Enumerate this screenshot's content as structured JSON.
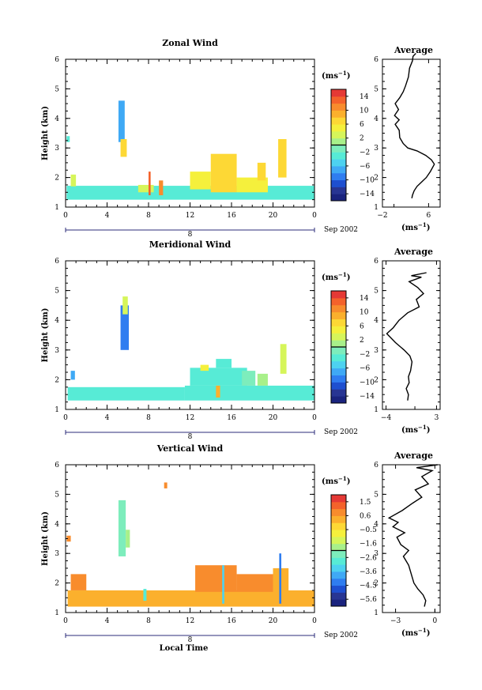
{
  "chart_data": [
    {
      "type": "heatmap",
      "title": "Zonal Wind",
      "ylabel": "Height (km)",
      "xlabel": "",
      "x_ticks": [
        "0",
        "4",
        "8",
        "12",
        "16",
        "20",
        "0"
      ],
      "y_ticks": [
        "1",
        "2",
        "3",
        "4",
        "5",
        "6"
      ],
      "xlim": [
        0,
        24
      ],
      "ylim": [
        1,
        6
      ],
      "date_label": "8",
      "month_label": "Sep 2002",
      "colorbar": {
        "unit": "(ms",
        "unit_exp": "−1",
        "unit_close": ")",
        "tick_labels": [
          "14",
          "10",
          "6",
          "2",
          "−2",
          "−6",
          "−10",
          "−14"
        ],
        "range": [
          -16,
          16
        ],
        "colors": [
          "#1a237e",
          "#283593",
          "#1e4fd0",
          "#2f7df0",
          "#3fa9f5",
          "#4dd2f0",
          "#57ebd6",
          "#7dedbc",
          "#a8f08a",
          "#d6f55a",
          "#f5f03c",
          "#fdd835",
          "#fbb02d",
          "#f88c2d",
          "#f4622b",
          "#e53935"
        ]
      },
      "blocks": [
        {
          "x0": 0.1,
          "x1": 24,
          "y0": 1.25,
          "y1": 1.72,
          "v": -4
        },
        {
          "x0": 0.5,
          "x1": 1.0,
          "y0": 1.7,
          "y1": 2.1,
          "v": 3
        },
        {
          "x0": 5.1,
          "x1": 5.7,
          "y0": 3.2,
          "y1": 4.6,
          "v": -7
        },
        {
          "x0": 5.3,
          "x1": 5.9,
          "y0": 2.7,
          "y1": 3.3,
          "v": 6
        },
        {
          "x0": 7.0,
          "x1": 8.5,
          "y0": 1.5,
          "y1": 1.75,
          "v": 2
        },
        {
          "x0": 12.0,
          "x1": 14.0,
          "y0": 1.6,
          "y1": 2.2,
          "v": 5
        },
        {
          "x0": 14.0,
          "x1": 16.5,
          "y0": 1.5,
          "y1": 2.8,
          "v": 7
        },
        {
          "x0": 16.5,
          "x1": 19.5,
          "y0": 1.5,
          "y1": 2.0,
          "v": 4
        },
        {
          "x0": 18.5,
          "x1": 19.3,
          "y0": 1.9,
          "y1": 2.5,
          "v": 6
        },
        {
          "x0": 20.5,
          "x1": 21.3,
          "y0": 2.0,
          "y1": 3.3,
          "v": 7
        },
        {
          "x0": 9.0,
          "x1": 9.4,
          "y0": 1.4,
          "y1": 1.9,
          "v": 11
        },
        {
          "x0": 8.0,
          "x1": 8.2,
          "y0": 1.4,
          "y1": 2.2,
          "v": 12
        },
        {
          "x0": 0.1,
          "x1": 0.4,
          "y0": 3.2,
          "y1": 3.4,
          "v": -4
        }
      ],
      "profile": {
        "title": "Average",
        "xlim": [
          -2,
          8
        ],
        "x_ticks": [
          "−2",
          "6"
        ],
        "x_tick_values": [
          -2,
          6
        ],
        "y_ticks": [
          "1",
          "2",
          "3",
          "4",
          "5",
          "6"
        ],
        "unit": "(ms",
        "unit_exp": "−1",
        "unit_close": ")",
        "points": [
          [
            3.1,
            1.3
          ],
          [
            3.2,
            1.4
          ],
          [
            3.5,
            1.55
          ],
          [
            4.0,
            1.7
          ],
          [
            4.8,
            1.85
          ],
          [
            5.6,
            2.0
          ],
          [
            6.3,
            2.2
          ],
          [
            7.0,
            2.45
          ],
          [
            6.5,
            2.6
          ],
          [
            5.5,
            2.75
          ],
          [
            4.0,
            2.9
          ],
          [
            2.4,
            3.0
          ],
          [
            1.6,
            3.15
          ],
          [
            1.0,
            3.35
          ],
          [
            0.9,
            3.6
          ],
          [
            0.2,
            3.8
          ],
          [
            0.9,
            3.95
          ],
          [
            0.1,
            4.1
          ],
          [
            0.8,
            4.3
          ],
          [
            0.2,
            4.5
          ],
          [
            1.0,
            4.7
          ],
          [
            1.6,
            4.9
          ],
          [
            2.0,
            5.1
          ],
          [
            2.5,
            5.4
          ],
          [
            2.7,
            5.7
          ],
          [
            3.2,
            5.95
          ],
          [
            3.3,
            6.1
          ],
          [
            3.8,
            6.2
          ]
        ]
      }
    },
    {
      "type": "heatmap",
      "title": "Meridional Wind",
      "ylabel": "Height (km)",
      "xlabel": "",
      "x_ticks": [
        "0",
        "4",
        "8",
        "12",
        "16",
        "20",
        "0"
      ],
      "y_ticks": [
        "1",
        "2",
        "3",
        "4",
        "5",
        "6"
      ],
      "xlim": [
        0,
        24
      ],
      "ylim": [
        1,
        6
      ],
      "date_label": "8",
      "month_label": "Sep 2002",
      "colorbar": {
        "unit": "(ms",
        "unit_exp": "−1",
        "unit_close": ")",
        "tick_labels": [
          "14",
          "10",
          "6",
          "2",
          "−2",
          "−6",
          "−10",
          "−14"
        ],
        "range": [
          -16,
          16
        ],
        "colors": [
          "#1a237e",
          "#283593",
          "#1e4fd0",
          "#2f7df0",
          "#3fa9f5",
          "#4dd2f0",
          "#57ebd6",
          "#7dedbc",
          "#a8f08a",
          "#d6f55a",
          "#f5f03c",
          "#fdd835",
          "#fbb02d",
          "#f88c2d",
          "#f4622b",
          "#e53935"
        ]
      },
      "blocks": [
        {
          "x0": 0.2,
          "x1": 11.5,
          "y0": 1.3,
          "y1": 1.75,
          "v": -4
        },
        {
          "x0": 11.5,
          "x1": 24,
          "y0": 1.3,
          "y1": 1.8,
          "v": -3
        },
        {
          "x0": 12.0,
          "x1": 17.5,
          "y0": 1.8,
          "y1": 2.4,
          "v": -3
        },
        {
          "x0": 14.5,
          "x1": 16.0,
          "y0": 2.4,
          "y1": 2.7,
          "v": -3
        },
        {
          "x0": 17.0,
          "x1": 18.3,
          "y0": 1.8,
          "y1": 2.3,
          "v": -1
        },
        {
          "x0": 18.5,
          "x1": 19.5,
          "y0": 1.8,
          "y1": 2.2,
          "v": 1
        },
        {
          "x0": 20.7,
          "x1": 21.3,
          "y0": 2.2,
          "y1": 3.2,
          "v": 3
        },
        {
          "x0": 5.3,
          "x1": 6.1,
          "y0": 3.0,
          "y1": 4.5,
          "v": -10
        },
        {
          "x0": 5.5,
          "x1": 6.0,
          "y0": 4.2,
          "y1": 4.8,
          "v": 3
        },
        {
          "x0": 0.5,
          "x1": 0.9,
          "y0": 2.0,
          "y1": 2.3,
          "v": -7
        },
        {
          "x0": 14.5,
          "x1": 14.9,
          "y0": 1.4,
          "y1": 1.8,
          "v": 9
        },
        {
          "x0": 13.0,
          "x1": 13.8,
          "y0": 2.3,
          "y1": 2.5,
          "v": 4
        }
      ],
      "profile": {
        "title": "Average",
        "xlim": [
          -4.5,
          3.5
        ],
        "x_ticks": [
          "−4",
          "3"
        ],
        "x_tick_values": [
          -4,
          3
        ],
        "y_ticks": [
          "1",
          "2",
          "3",
          "4",
          "5",
          "6"
        ],
        "unit": "(ms",
        "unit_exp": "−1",
        "unit_close": ")",
        "points": [
          [
            -1.0,
            1.3
          ],
          [
            -0.9,
            1.5
          ],
          [
            -1.2,
            1.7
          ],
          [
            -0.8,
            1.9
          ],
          [
            -0.9,
            2.1
          ],
          [
            -0.6,
            2.3
          ],
          [
            -0.4,
            2.6
          ],
          [
            -0.7,
            2.8
          ],
          [
            -1.5,
            3.0
          ],
          [
            -2.7,
            3.25
          ],
          [
            -3.9,
            3.55
          ],
          [
            -3.0,
            3.75
          ],
          [
            -2.2,
            4.0
          ],
          [
            -1.0,
            4.25
          ],
          [
            0.6,
            4.45
          ],
          [
            0.2,
            4.7
          ],
          [
            1.2,
            4.9
          ],
          [
            0.4,
            5.1
          ],
          [
            -0.8,
            5.3
          ],
          [
            0.9,
            5.45
          ],
          [
            -0.5,
            5.5
          ],
          [
            1.6,
            5.6
          ]
        ]
      }
    },
    {
      "type": "heatmap",
      "title": "Vertical Wind",
      "ylabel": "Height (km)",
      "xlabel": "Local Time",
      "x_ticks": [
        "0",
        "4",
        "8",
        "12",
        "16",
        "20",
        "0"
      ],
      "y_ticks": [
        "1",
        "2",
        "3",
        "4",
        "5",
        "6"
      ],
      "xlim": [
        0,
        24
      ],
      "ylim": [
        1,
        6
      ],
      "date_label": "8",
      "month_label": "Sep 2002",
      "colorbar": {
        "unit": "(ms",
        "unit_exp": "−1",
        "unit_close": ")",
        "tick_labels": [
          "1.5",
          "0.6",
          "−0.5",
          "−1.6",
          "−2.6",
          "−3.6",
          "−4.5",
          "−5.6"
        ],
        "range": [
          -6.2,
          1.9
        ],
        "colors": [
          "#1a237e",
          "#283593",
          "#1e4fd0",
          "#2f7df0",
          "#3fa9f5",
          "#4dd2f0",
          "#57ebd6",
          "#7dedbc",
          "#a8f08a",
          "#d6f55a",
          "#f5f03c",
          "#fdd835",
          "#fbb02d",
          "#f88c2d",
          "#f4622b",
          "#e53935"
        ]
      },
      "blocks": [
        {
          "x0": 0.2,
          "x1": 24,
          "y0": 1.2,
          "y1": 1.75,
          "v": 0.3
        },
        {
          "x0": 0.5,
          "x1": 2.0,
          "y0": 1.75,
          "y1": 2.3,
          "v": 0.6
        },
        {
          "x0": 12.5,
          "x1": 16.5,
          "y0": 1.7,
          "y1": 2.6,
          "v": 0.6
        },
        {
          "x0": 16.5,
          "x1": 20.0,
          "y0": 1.7,
          "y1": 2.3,
          "v": 0.4
        },
        {
          "x0": 20.0,
          "x1": 21.5,
          "y0": 1.7,
          "y1": 2.5,
          "v": 0.3
        },
        {
          "x0": 5.1,
          "x1": 5.8,
          "y0": 2.9,
          "y1": 4.8,
          "v": -2.6
        },
        {
          "x0": 5.8,
          "x1": 6.2,
          "y0": 3.2,
          "y1": 3.8,
          "v": -1.7
        },
        {
          "x0": 15.1,
          "x1": 15.3,
          "y0": 1.3,
          "y1": 2.6,
          "v": -3.6
        },
        {
          "x0": 20.6,
          "x1": 20.8,
          "y0": 1.3,
          "y1": 3.0,
          "v": -4.2
        },
        {
          "x0": 7.5,
          "x1": 7.8,
          "y0": 1.4,
          "y1": 1.8,
          "v": -3.0
        },
        {
          "x0": 9.5,
          "x1": 9.8,
          "y0": 5.2,
          "y1": 5.4,
          "v": 0.7
        },
        {
          "x0": 0.1,
          "x1": 0.5,
          "y0": 3.4,
          "y1": 3.6,
          "v": 0.4
        }
      ],
      "profile": {
        "title": "Average",
        "xlim": [
          -4,
          0.4
        ],
        "x_ticks": [
          "−3",
          "0"
        ],
        "x_tick_values": [
          -3,
          0
        ],
        "y_ticks": [
          "1",
          "2",
          "3",
          "4",
          "5",
          "6"
        ],
        "unit": "(ms",
        "unit_exp": "−1",
        "unit_close": ")",
        "points": [
          [
            -0.8,
            1.2
          ],
          [
            -0.7,
            1.4
          ],
          [
            -0.9,
            1.6
          ],
          [
            -1.3,
            1.8
          ],
          [
            -1.6,
            2.0
          ],
          [
            -1.8,
            2.3
          ],
          [
            -2.0,
            2.6
          ],
          [
            -2.4,
            2.9
          ],
          [
            -2.0,
            3.1
          ],
          [
            -2.6,
            3.3
          ],
          [
            -2.9,
            3.55
          ],
          [
            -2.3,
            3.7
          ],
          [
            -3.2,
            3.9
          ],
          [
            -2.8,
            4.05
          ],
          [
            -3.5,
            4.2
          ],
          [
            -2.5,
            4.45
          ],
          [
            -1.7,
            4.7
          ],
          [
            -1.0,
            4.9
          ],
          [
            -1.5,
            5.15
          ],
          [
            -0.5,
            5.35
          ],
          [
            -1.0,
            5.6
          ],
          [
            -0.2,
            5.8
          ],
          [
            -1.4,
            5.9
          ],
          [
            0.2,
            6.0
          ]
        ]
      }
    }
  ]
}
